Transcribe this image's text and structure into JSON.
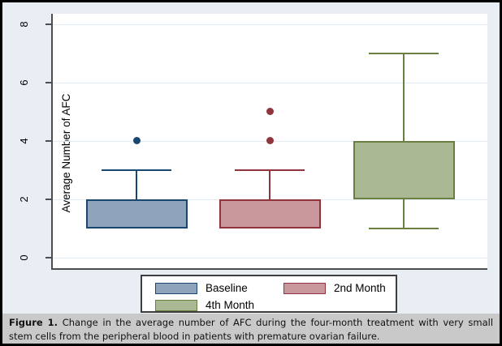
{
  "figure": {
    "caption_label": "Figure 1.",
    "caption_text": "Change in the average number of AFC during the four-month treatment with very small stem cells from the peripheral blood in patients with premature ovarian failure."
  },
  "chart_data": {
    "type": "boxplot",
    "title": "",
    "xlabel": "",
    "ylabel": "Average Number of AFC",
    "yticks": [
      0,
      2,
      4,
      6,
      8
    ],
    "ylim": [
      -0.42,
      8.36
    ],
    "grid": true,
    "legend_position": "bottom-center",
    "series": [
      {
        "name": "Baseline",
        "fill": "#8ea4bd",
        "stroke": "#1a476f",
        "q1": 1,
        "median": 2,
        "q3": 2,
        "whisker_low": 1,
        "whisker_high": 3,
        "outliers": [
          4
        ]
      },
      {
        "name": "2nd Month",
        "fill": "#c9989c",
        "stroke": "#90353b",
        "q1": 1,
        "median": 2,
        "q3": 2,
        "whisker_low": 1,
        "whisker_high": 3,
        "outliers": [
          4,
          5
        ]
      },
      {
        "name": "4th Month",
        "fill": "#aab894",
        "stroke": "#6b8040",
        "q1": 2,
        "median": 2,
        "q3": 4,
        "whisker_low": 1,
        "whisker_high": 7,
        "outliers": []
      }
    ],
    "colors": {
      "background": "#e9eef4",
      "plot_background": "#ffffff",
      "gridline": "#e3ebf2",
      "axis": "#4d4d4d",
      "caption_background": "#c9c9c9"
    }
  }
}
